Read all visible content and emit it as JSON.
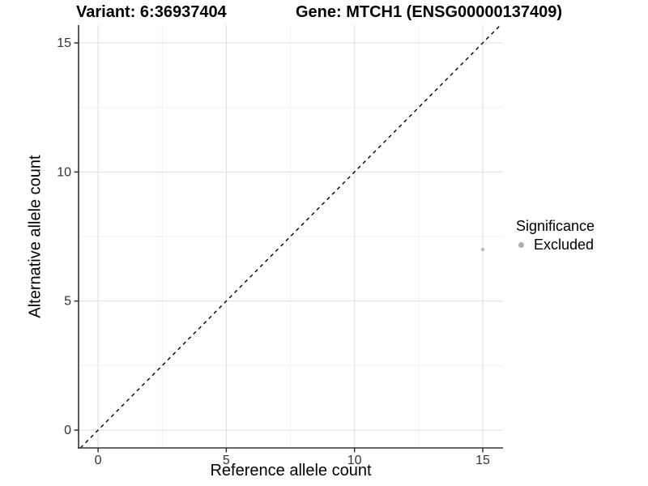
{
  "chart_data": {
    "type": "scatter",
    "titles": {
      "left": "Variant: 6:36937404",
      "right": "Gene: MTCH1 (ENSG00000137409)"
    },
    "xlabel": "Reference allele count",
    "ylabel": "Alternative allele count",
    "xlim": [
      -0.76,
      15.79
    ],
    "ylim": [
      -0.69,
      15.69
    ],
    "xticks": [
      0,
      5,
      10,
      15
    ],
    "yticks": [
      0,
      5,
      10,
      15
    ],
    "xminor": [
      2.5,
      7.5,
      12.5
    ],
    "yminor": [
      2.5,
      7.5,
      12.5
    ],
    "grid": "major+minor",
    "reference_line": {
      "type": "identity",
      "slope": 1,
      "intercept": 0,
      "style": "dashed",
      "color": "#000000"
    },
    "series": [
      {
        "name": "Excluded",
        "color": "#bdbdbd",
        "points": [
          {
            "x": 15,
            "y": 7
          }
        ]
      }
    ],
    "legend": {
      "title": "Significance",
      "position": "right",
      "entries": [
        {
          "label": "Excluded",
          "color": "#b0b0b0"
        }
      ]
    },
    "colors": {
      "axis": "#333333",
      "grid_major": "#e3e3e3",
      "grid_minor": "#f0f0f0",
      "background": "#ffffff"
    }
  }
}
